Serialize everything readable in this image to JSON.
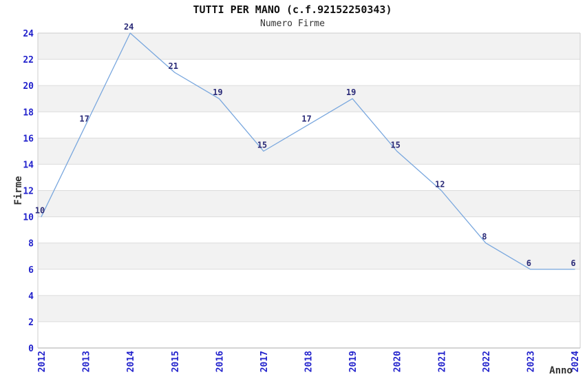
{
  "chart_data": {
    "type": "line",
    "title": "TUTTI PER MANO (c.f.92152250343)",
    "subtitle": "Numero Firme",
    "xlabel": "Anno",
    "ylabel": "Firme",
    "categories": [
      "2012",
      "2013",
      "2014",
      "2015",
      "2016",
      "2017",
      "2018",
      "2019",
      "2020",
      "2021",
      "2022",
      "2023",
      "2024"
    ],
    "values": [
      10,
      17,
      24,
      21,
      19,
      15,
      17,
      19,
      15,
      12,
      8,
      6,
      6
    ],
    "ylim": [
      0,
      24
    ],
    "ytick_step": 2,
    "show_point_labels": true,
    "legend": "none",
    "grid": "horizontal-bands",
    "colors": {
      "line": "#79a7de",
      "tick_labels": "#2222cc",
      "point_labels": "#2b2b78",
      "band_fill": "#f2f2f2",
      "grid_line": "#dcdcdc",
      "axis_line": "#a8a8a8",
      "border_line": "#cccccc",
      "title_text": "#111111",
      "subtitle_text": "#333333",
      "axis_title_text": "#333333",
      "background": "#ffffff"
    }
  }
}
